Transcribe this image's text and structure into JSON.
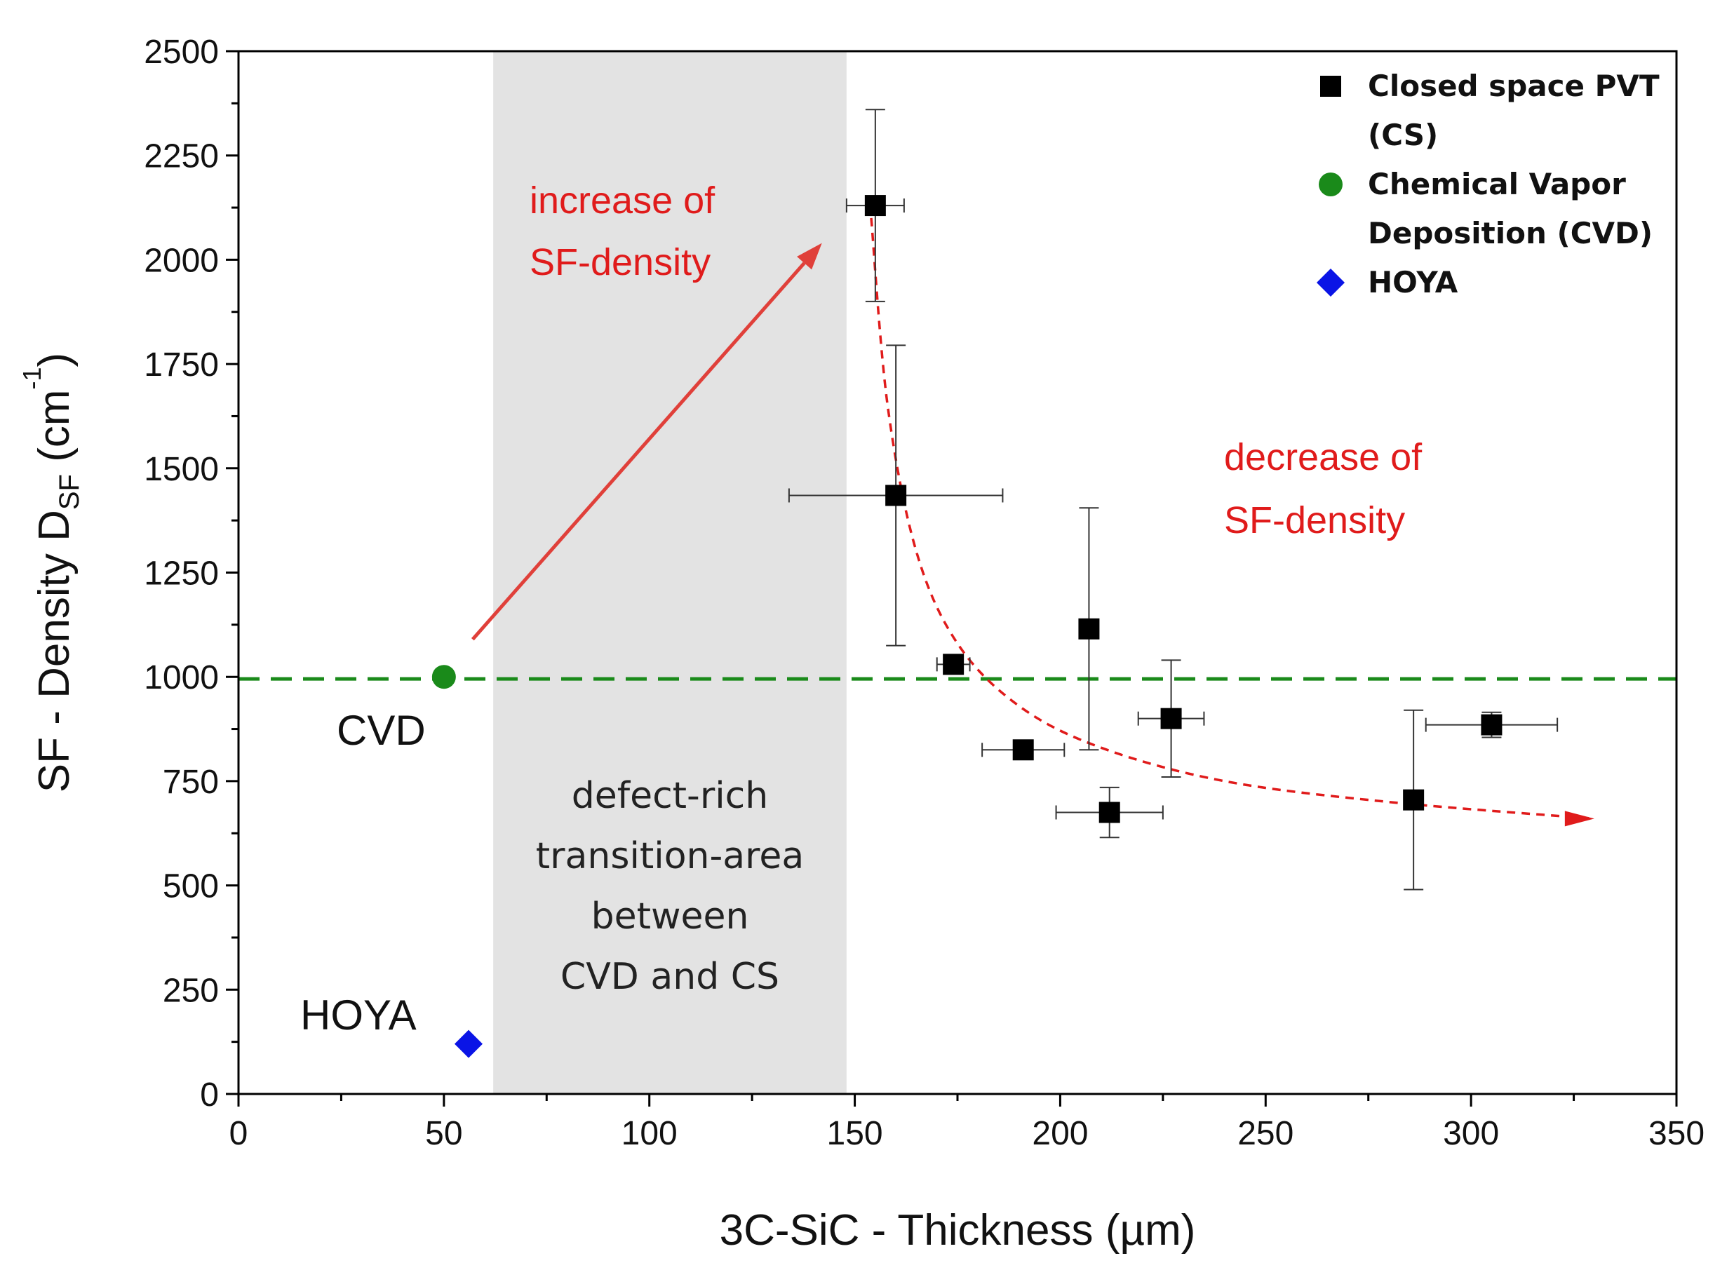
{
  "chart_data": {
    "type": "scatter",
    "xlabel": "3C-SiC - Thickness (µm)",
    "ylabel_main": "SF - Density D",
    "ylabel_sub": "SF",
    "ylabel_unit_open": " (cm",
    "ylabel_sup": "-1",
    "ylabel_unit_close": ")",
    "xlim": [
      0,
      350
    ],
    "ylim": [
      0,
      2500
    ],
    "x_ticks": [
      0,
      50,
      100,
      150,
      200,
      250,
      300,
      350
    ],
    "y_ticks": [
      0,
      250,
      500,
      750,
      1000,
      1250,
      1500,
      1750,
      2000,
      2250,
      2500
    ],
    "series": [
      {
        "name": "Closed space PVT (CS)",
        "legend_lines": [
          "Closed space PVT",
          "(CS)"
        ],
        "marker": "square",
        "color": "#000000",
        "points": [
          {
            "x": 155,
            "y": 2130,
            "xerr": [
              7,
              7
            ],
            "yerr": [
              230,
              230
            ]
          },
          {
            "x": 160,
            "y": 1435,
            "xerr": [
              26,
              26
            ],
            "yerr": [
              360,
              360
            ]
          },
          {
            "x": 174,
            "y": 1030,
            "xerr": [
              4,
              4
            ],
            "yerr": [
              20,
              20
            ]
          },
          {
            "x": 191,
            "y": 825,
            "xerr": [
              10,
              10
            ],
            "yerr": [
              0,
              0
            ]
          },
          {
            "x": 207,
            "y": 1115,
            "xerr": [
              0,
              0
            ],
            "yerr": [
              290,
              290
            ]
          },
          {
            "x": 212,
            "y": 675,
            "xerr": [
              13,
              13
            ],
            "yerr": [
              60,
              60
            ]
          },
          {
            "x": 227,
            "y": 900,
            "xerr": [
              8,
              8
            ],
            "yerr": [
              140,
              140
            ]
          },
          {
            "x": 286,
            "y": 705,
            "xerr": [
              0,
              0
            ],
            "yerr": [
              215,
              215
            ]
          },
          {
            "x": 305,
            "y": 885,
            "xerr": [
              16,
              16
            ],
            "yerr": [
              30,
              30
            ]
          }
        ]
      },
      {
        "name": "Chemical Vapor Deposition (CVD)",
        "legend_lines": [
          "Chemical Vapor",
          "Deposition (CVD)"
        ],
        "marker": "circle",
        "color": "#1a8a1a",
        "points": [
          {
            "x": 50,
            "y": 1000
          }
        ]
      },
      {
        "name": "HOYA",
        "legend_lines": [
          "HOYA"
        ],
        "marker": "diamond",
        "color": "#0a14e6",
        "points": [
          {
            "x": 56,
            "y": 120
          }
        ]
      }
    ],
    "reference_line": {
      "y": 995,
      "style": "dashed",
      "color": "#1a8a1a"
    },
    "shaded_region": {
      "x": [
        62,
        148
      ],
      "color": "#e3e3e3"
    },
    "trend_curve": {
      "style": "dashed",
      "color": "#e01b1b",
      "points": [
        [
          154,
          2100
        ],
        [
          158,
          1650
        ],
        [
          165,
          1300
        ],
        [
          175,
          1080
        ],
        [
          190,
          930
        ],
        [
          210,
          830
        ],
        [
          240,
          750
        ],
        [
          280,
          700
        ],
        [
          330,
          660
        ]
      ]
    },
    "increase_arrow": {
      "from": [
        57,
        1090
      ],
      "to": [
        142,
        2040
      ],
      "color": "#e0403a"
    },
    "annotations": {
      "increase_lines": [
        "increase of",
        "SF-density"
      ],
      "decrease_lines": [
        "decrease of",
        "SF-density"
      ],
      "region_lines": [
        "defect-rich",
        "transition-area",
        "between",
        "CVD and CS"
      ],
      "cvd_label": "CVD",
      "hoya_label": "HOYA"
    },
    "legend_position": "top-right",
    "grid": false
  }
}
